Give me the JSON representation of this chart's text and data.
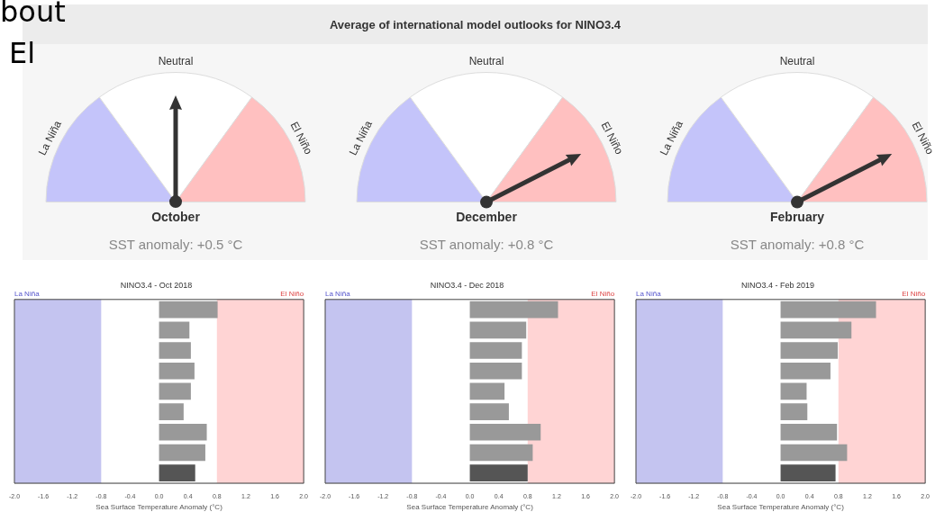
{
  "chart_data": [
    {
      "type": "pie",
      "subtitle": "October",
      "categories": [
        "La Niña",
        "Neutral",
        "El Niño"
      ],
      "values": [
        30,
        40,
        30
      ],
      "colors": [
        "#c4c4fa",
        "#ffffff",
        "#ffc0c0"
      ],
      "needle": "Neutral",
      "annotations": [
        "SST anomaly: +0.5 °C",
        "bout",
        "El"
      ]
    },
    {
      "type": "pie",
      "title": "Average of international model outlooks for NINO3.4",
      "subtitle": "December",
      "categories": [
        "La Niña",
        "Neutral",
        "El Niño"
      ],
      "values": [
        30,
        40,
        30
      ],
      "colors": [
        "#c4c4fa",
        "#ffffff",
        "#ffc0c0"
      ],
      "needle": "El Niño",
      "annotations": [
        "SST anomaly: +0.8 °C"
      ]
    },
    {
      "type": "pie",
      "subtitle": "February",
      "categories": [
        "La Niña",
        "Neutral",
        "El Niño"
      ],
      "values": [
        30,
        40,
        30
      ],
      "colors": [
        "#c4c4fa",
        "#ffffff",
        "#ffc0c0"
      ],
      "needle": "El Niño",
      "annotations": [
        "SST anomaly: +0.8 °C"
      ]
    },
    {
      "type": "bar",
      "orientation": "horizontal",
      "title": "NINO3.4 - Oct 2018",
      "xlabel": "Sea Surface Temperature Anomaly (°C)",
      "categories": [
        null,
        null,
        null,
        null,
        null,
        null,
        null,
        null,
        null
      ],
      "values": [
        0.81,
        0.42,
        0.44,
        0.49,
        0.44,
        0.34,
        0.66,
        0.64,
        0.5
      ],
      "colors": [
        "#999999",
        "#999999",
        "#999999",
        "#999999",
        "#999999",
        "#999999",
        "#999999",
        "#999999",
        "#555555"
      ],
      "xlim": [
        -2,
        2
      ],
      "xticks": [
        {
          "value": -2,
          "label": "-2.0"
        },
        {
          "value": -1.6,
          "label": "-1.6"
        },
        {
          "value": -1.2,
          "label": "-1.2"
        },
        {
          "value": -0.8,
          "label": "-0.8"
        },
        {
          "value": -0.4,
          "label": "-0.4"
        },
        {
          "value": 0,
          "label": "0.0"
        },
        {
          "value": 0.4,
          "label": "0.4"
        },
        {
          "value": 0.8,
          "label": "0.8"
        },
        {
          "value": 1.2,
          "label": "1.2"
        },
        {
          "value": 1.6,
          "label": "1.6"
        },
        {
          "value": 2,
          "label": "2.0"
        }
      ],
      "tick_labels": "x",
      "bands": [
        {
          "axis": "x",
          "from": -2,
          "to": -0.8,
          "label": "La Niña",
          "color": "#c4c4f0"
        },
        {
          "axis": "x",
          "from": 0.8,
          "to": 2,
          "label": "El Niño",
          "color": "#ffd4d4"
        }
      ]
    },
    {
      "type": "bar",
      "orientation": "horizontal",
      "title": "NINO3.4 - Dec 2018",
      "xlabel": "Sea Surface Temperature Anomaly (°C)",
      "categories": [
        null,
        null,
        null,
        null,
        null,
        null,
        null,
        null,
        null
      ],
      "values": [
        1.22,
        0.78,
        0.72,
        0.72,
        0.48,
        0.54,
        0.98,
        0.87,
        0.8
      ],
      "colors": [
        "#999999",
        "#999999",
        "#999999",
        "#999999",
        "#999999",
        "#999999",
        "#999999",
        "#999999",
        "#555555"
      ],
      "xlim": [
        -2,
        2
      ],
      "xticks": [
        {
          "value": -2,
          "label": "-2.0"
        },
        {
          "value": -1.6,
          "label": "-1.6"
        },
        {
          "value": -1.2,
          "label": "-1.2"
        },
        {
          "value": -0.8,
          "label": "-0.8"
        },
        {
          "value": -0.4,
          "label": "-0.4"
        },
        {
          "value": 0,
          "label": "0.0"
        },
        {
          "value": 0.4,
          "label": "0.4"
        },
        {
          "value": 0.8,
          "label": "0.8"
        },
        {
          "value": 1.2,
          "label": "1.2"
        },
        {
          "value": 1.6,
          "label": "1.6"
        },
        {
          "value": 2,
          "label": "2.0"
        }
      ],
      "tick_labels": "x",
      "bands": [
        {
          "axis": "x",
          "from": -2,
          "to": -0.8,
          "label": "La Niña",
          "color": "#c4c4f0"
        },
        {
          "axis": "x",
          "from": 0.8,
          "to": 2,
          "label": "El Niño",
          "color": "#ffd4d4"
        }
      ]
    },
    {
      "type": "bar",
      "orientation": "horizontal",
      "title": "NINO3.4 - Feb 2019",
      "xlabel": "Sea Surface Temperature Anomaly (°C)",
      "categories": [
        null,
        null,
        null,
        null,
        null,
        null,
        null,
        null,
        null
      ],
      "values": [
        1.32,
        0.98,
        0.79,
        0.69,
        0.36,
        0.37,
        0.78,
        0.92,
        0.76
      ],
      "colors": [
        "#999999",
        "#999999",
        "#999999",
        "#999999",
        "#999999",
        "#999999",
        "#999999",
        "#999999",
        "#555555"
      ],
      "xlim": [
        -2,
        2
      ],
      "xticks": [
        {
          "value": -2,
          "label": "-2.0"
        },
        {
          "value": -1.6,
          "label": "-1.6"
        },
        {
          "value": -1.2,
          "label": "-1.2"
        },
        {
          "value": -0.8,
          "label": "-0.8"
        },
        {
          "value": -0.4,
          "label": "-0.4"
        },
        {
          "value": 0,
          "label": "0.0"
        },
        {
          "value": 0.4,
          "label": "0.4"
        },
        {
          "value": 0.8,
          "label": "0.8"
        },
        {
          "value": 1.2,
          "label": "1.2"
        },
        {
          "value": 1.6,
          "label": "1.6"
        },
        {
          "value": 2,
          "label": "2.0"
        }
      ],
      "tick_labels": "x",
      "bands": [
        {
          "axis": "x",
          "from": -2,
          "to": -0.8,
          "label": "La Niña",
          "color": "#c4c4f0"
        },
        {
          "axis": "x",
          "from": 0.8,
          "to": 2,
          "label": "El Niño",
          "color": "#ffd4d4"
        }
      ]
    }
  ]
}
